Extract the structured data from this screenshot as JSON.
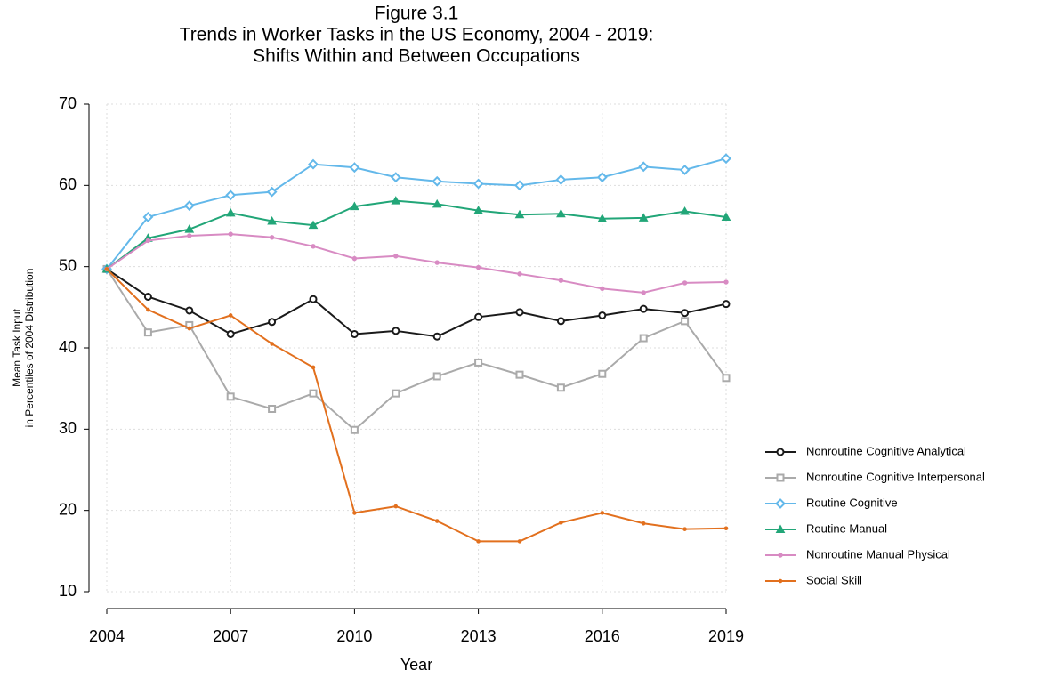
{
  "chart_data": {
    "type": "line",
    "title": [
      "Figure 3.1",
      "Trends in Worker Tasks in the US Economy, 2004 - 2019:",
      "Shifts Within and Between Occupations"
    ],
    "x_label": "Year",
    "y_label": [
      "Mean Task Input",
      "in Percentiles of 2004 Distribution"
    ],
    "x": [
      2004,
      2005,
      2006,
      2007,
      2008,
      2009,
      2010,
      2011,
      2012,
      2013,
      2014,
      2015,
      2016,
      2017,
      2018,
      2019
    ],
    "xlim": [
      2004,
      2019
    ],
    "xticks": [
      2004,
      2007,
      2010,
      2013,
      2016,
      2019
    ],
    "ylim": [
      10,
      70
    ],
    "yticks": [
      10,
      20,
      30,
      40,
      50,
      60,
      70
    ],
    "grid": true,
    "legend": "right",
    "series": [
      {
        "name": "Nonroutine Cognitive Analytical",
        "color": "#1a1a1a",
        "marker": "circle",
        "values": [
          49.7,
          46.3,
          44.6,
          41.7,
          43.2,
          46.0,
          41.7,
          42.1,
          41.4,
          43.8,
          44.4,
          43.3,
          44.0,
          44.8,
          44.3,
          45.4
        ]
      },
      {
        "name": "Nonroutine Cognitive Interpersonal",
        "color": "#aaaaaa",
        "marker": "square",
        "values": [
          49.7,
          41.9,
          42.8,
          34.0,
          32.5,
          34.4,
          29.9,
          34.4,
          36.5,
          38.2,
          36.7,
          35.1,
          36.8,
          41.2,
          43.3,
          36.3
        ]
      },
      {
        "name": "Routine Cognitive",
        "color": "#63b8ea",
        "marker": "diamond",
        "values": [
          49.7,
          56.1,
          57.5,
          58.8,
          59.2,
          62.6,
          62.2,
          61.0,
          60.5,
          60.2,
          60.0,
          60.7,
          61.0,
          62.3,
          61.9,
          63.3
        ]
      },
      {
        "name": "Routine Manual",
        "color": "#22a678",
        "marker": "triangle",
        "values": [
          49.7,
          53.5,
          54.6,
          56.6,
          55.6,
          55.1,
          57.4,
          58.1,
          57.7,
          56.9,
          56.4,
          56.5,
          55.9,
          56.0,
          56.8,
          56.1
        ]
      },
      {
        "name": "Nonroutine Manual Physical",
        "color": "#d88bc3",
        "marker": "plus",
        "values": [
          49.7,
          53.2,
          53.8,
          54.0,
          53.6,
          52.5,
          51.0,
          51.3,
          50.5,
          49.9,
          49.1,
          48.3,
          47.3,
          46.8,
          48.0,
          48.1
        ]
      },
      {
        "name": "Social Skill",
        "color": "#e2701e",
        "marker": "dot",
        "values": [
          49.7,
          44.7,
          42.4,
          44.0,
          40.5,
          37.6,
          19.7,
          20.5,
          18.7,
          16.2,
          16.2,
          18.5,
          19.7,
          18.4,
          17.7,
          17.8
        ]
      }
    ]
  }
}
